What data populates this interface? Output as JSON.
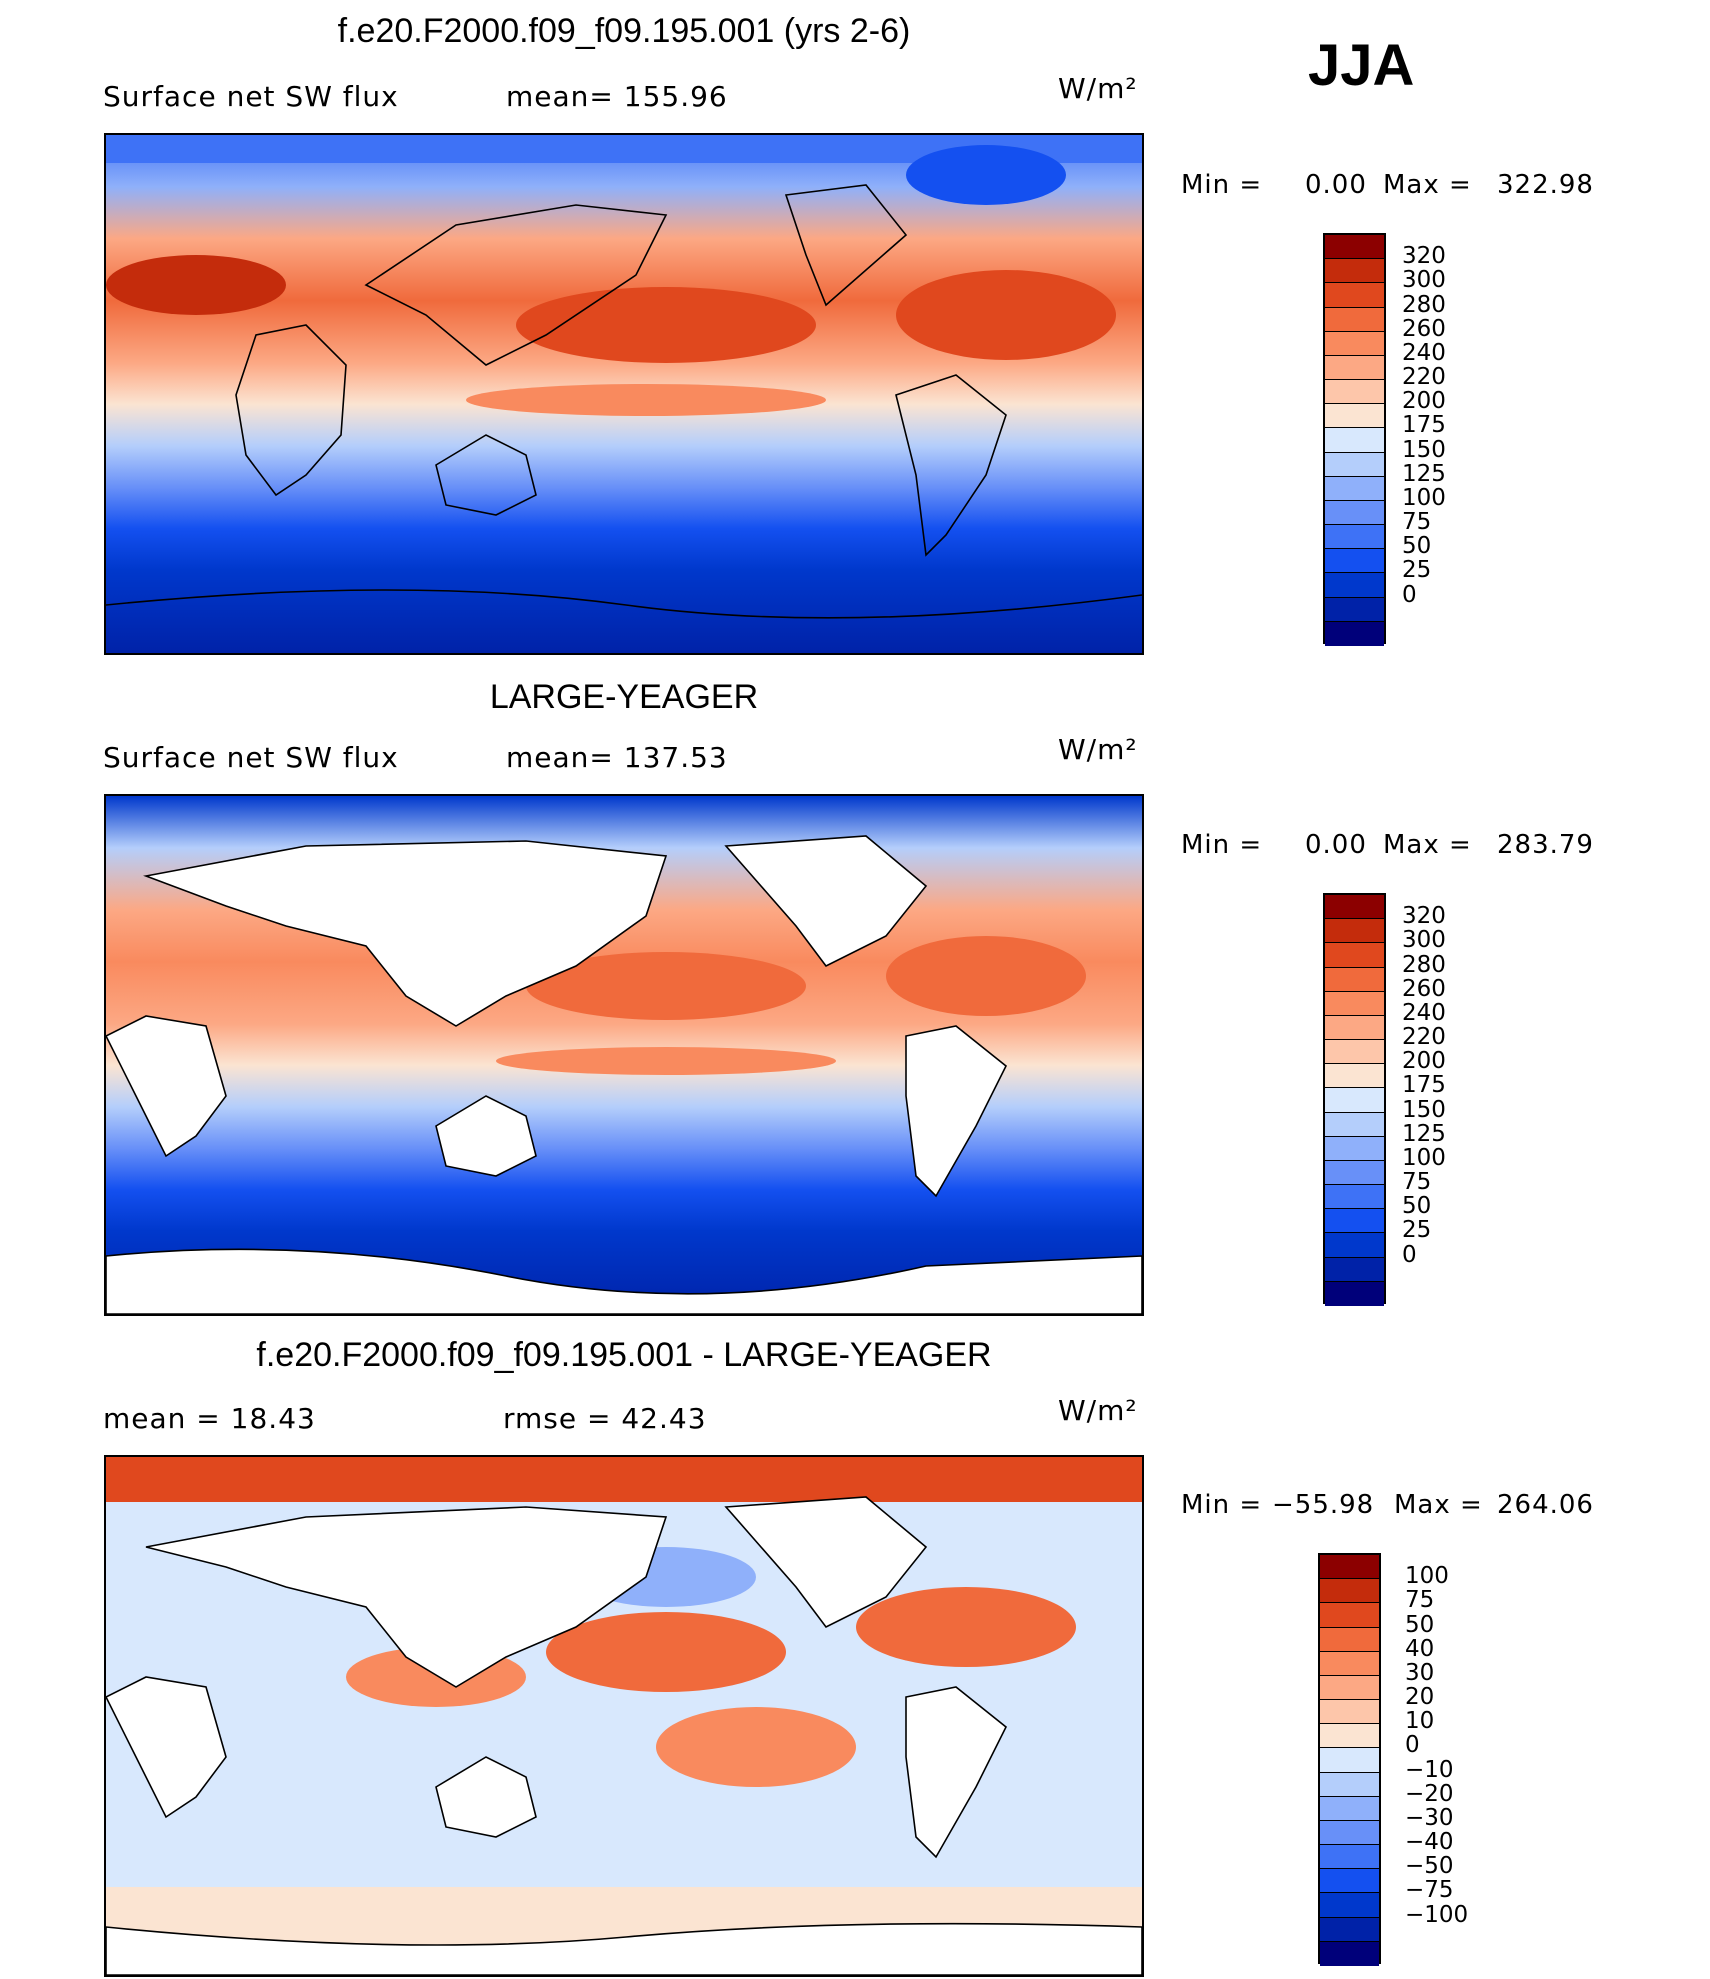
{
  "season": "JJA",
  "colors": {
    "abs_scale": [
      "#00007a",
      "#0022a8",
      "#0038cc",
      "#1450f0",
      "#3e72f6",
      "#6890f8",
      "#8fb0fa",
      "#b4cefb",
      "#d8e8fd",
      "#fbe4d2",
      "#fdc6aa",
      "#fca884",
      "#f98a5e",
      "#f06a3c",
      "#e0481e",
      "#c42c0c",
      "#8c0000"
    ],
    "diff_scale": [
      "#00007a",
      "#0022a8",
      "#0038cc",
      "#1450f0",
      "#3e72f6",
      "#6890f8",
      "#8fb0fa",
      "#b4cefb",
      "#d8e8fd",
      "#fbe4d2",
      "#fdc6aa",
      "#fca884",
      "#f98a5e",
      "#f06a3c",
      "#e0481e",
      "#c42c0c",
      "#8c0000"
    ]
  },
  "chart_data": [
    {
      "type": "heatmap",
      "title": "f.e20.F2000.f09_f09.195.001 (yrs 2-6)",
      "left_label": "Surface net SW flux",
      "stat": "mean=  155.96",
      "units": "W/m²",
      "min_text": "Min  =",
      "min_value": "0.00",
      "max_text": "Max  =",
      "max_value": "322.98",
      "levels": [
        "320",
        "300",
        "280",
        "260",
        "240",
        "220",
        "200",
        "175",
        "150",
        "125",
        "100",
        "75",
        "50",
        "25",
        "0"
      ]
    },
    {
      "type": "heatmap",
      "title": "LARGE-YEAGER",
      "left_label": "Surface net SW flux",
      "stat": "mean=  137.53",
      "units": "W/m²",
      "min_text": "Min  =",
      "min_value": "0.00",
      "max_text": "Max  =",
      "max_value": "283.79",
      "levels": [
        "320",
        "300",
        "280",
        "260",
        "240",
        "220",
        "200",
        "175",
        "150",
        "125",
        "100",
        "75",
        "50",
        "25",
        "0"
      ]
    },
    {
      "type": "heatmap",
      "title": "f.e20.F2000.f09_f09.195.001 - LARGE-YEAGER",
      "left_label": "mean  =    18.43",
      "stat": "rmse  =    42.43",
      "units": "W/m²",
      "min_text": "Min  =",
      "min_value": "−55.98",
      "max_text": "Max  =",
      "max_value": "264.06",
      "levels": [
        "100",
        "75",
        "50",
        "40",
        "30",
        "20",
        "10",
        "0",
        "−10",
        "−20",
        "−30",
        "−40",
        "−50",
        "−75",
        "−100"
      ]
    }
  ]
}
